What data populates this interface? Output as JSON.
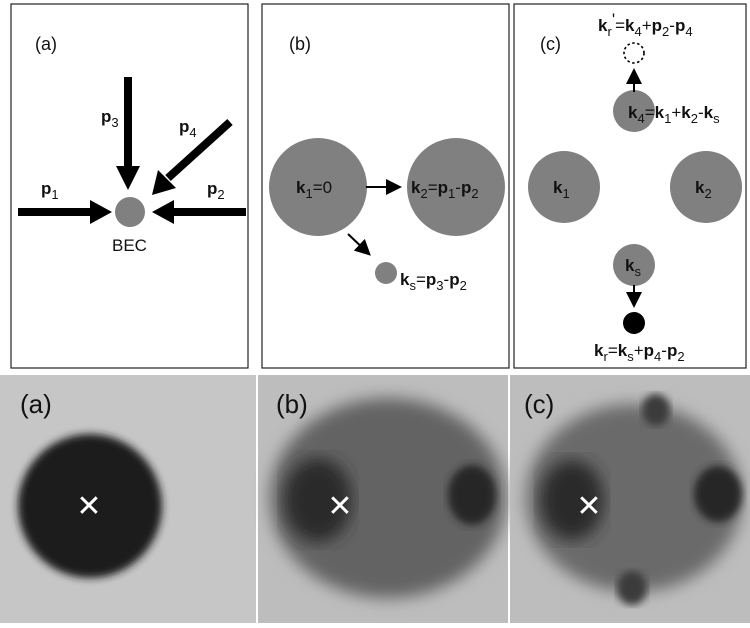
{
  "top_panels": [
    {
      "label": "(a)",
      "bec_label": "BEC",
      "beams": [
        {
          "name": "p1",
          "text": "p",
          "sub": "1"
        },
        {
          "name": "p2",
          "text": "p",
          "sub": "2"
        },
        {
          "name": "p3",
          "text": "p",
          "sub": "3"
        },
        {
          "name": "p4",
          "text": "p",
          "sub": "4"
        }
      ]
    },
    {
      "label": "(b)",
      "k1": {
        "k": "k",
        "sub": "1",
        "rest": "=0"
      },
      "k2": {
        "k": "k",
        "sub": "2",
        "eq": "=",
        "p1": "p",
        "p1sub": "1",
        "minus": "-",
        "p2": "p",
        "p2sub": "2"
      },
      "ks": {
        "k": "k",
        "sub": "s",
        "eq": "=",
        "p3": "p",
        "p3sub": "3",
        "minus": "-",
        "p2": "p",
        "p2sub": "2"
      }
    },
    {
      "label": "(c)",
      "k1": {
        "k": "k",
        "sub": "1"
      },
      "k2": {
        "k": "k",
        "sub": "2"
      },
      "ks": {
        "k": "k",
        "sub": "s"
      },
      "k4": {
        "k": "k",
        "sub": "4",
        "eq": "=",
        "a": "k",
        "asub": "1",
        "plus": "+",
        "b": "k",
        "bsub": "2",
        "minus": "-",
        "c": "k",
        "csub": "s"
      },
      "kr_prime": {
        "k": "k",
        "sub": "r",
        "prime": "'",
        "eq": "=",
        "a": "k",
        "asub": "4",
        "plus": "+",
        "b": "p",
        "bsub": "2",
        "minus": "-",
        "c": "p",
        "csub": "4"
      },
      "kr": {
        "k": "k",
        "sub": "r",
        "eq": "=",
        "a": "k",
        "asub": "s",
        "plus": "+",
        "b": "p",
        "bsub": "4",
        "minus": "-",
        "c": "p",
        "csub": "2"
      }
    }
  ],
  "bottom_panels": [
    {
      "label": "(a)",
      "marker": "✕"
    },
    {
      "label": "(b)",
      "marker": "✕"
    },
    {
      "label": "(c)",
      "marker": "✕"
    }
  ],
  "colors": {
    "disc": "#808080",
    "arrow": "#000000",
    "photo_bg": "#c4c4c4",
    "photo_dark": "#1e1e1e"
  }
}
